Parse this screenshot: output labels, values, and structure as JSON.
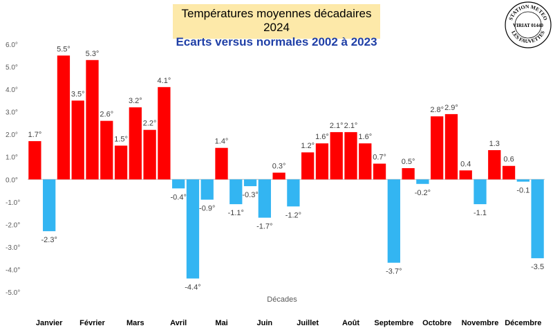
{
  "header": {
    "title_line1": "Températures moyennes décadaires 2024",
    "title_line2": "Ecarts versus normales 2002 à 2023"
  },
  "stamp": {
    "line1": "STATION METEO",
    "line2": "VIRIAT 01440",
    "line3": "LES FAUVETTES"
  },
  "chart_data": {
    "type": "bar",
    "title": "Températures moyennes décadaires 2024 — Ecarts versus normales 2002 à 2023",
    "xlabel": "Décades",
    "ylabel": "",
    "ylim": [
      -5.0,
      6.0
    ],
    "y_ticks": [
      6.0,
      5.0,
      4.0,
      3.0,
      2.0,
      1.0,
      0.0,
      -1.0,
      -2.0,
      -3.0,
      -4.0,
      -5.0
    ],
    "y_tick_labels": [
      "6.0°",
      "5.0°",
      "4.0°",
      "3.0°",
      "2.0°",
      "1.0°",
      "0.0°",
      "-1.0°",
      "-2.0°",
      "-3.0°",
      "-4.0°",
      "-5.0°"
    ],
    "grid": false,
    "positive_color": "#ff0000",
    "negative_color": "#33b5f2",
    "months": [
      "Janvier",
      "Février",
      "Mars",
      "Avril",
      "Mai",
      "Juin",
      "Juillet",
      "Août",
      "Septembre",
      "Octobre",
      "Novembre",
      "Décembre"
    ],
    "values": [
      1.7,
      -2.3,
      5.5,
      3.5,
      5.3,
      2.6,
      1.5,
      3.2,
      2.2,
      4.1,
      -0.4,
      -4.4,
      -0.9,
      1.4,
      -1.1,
      -0.3,
      -1.7,
      0.3,
      -1.2,
      1.2,
      1.6,
      2.1,
      2.1,
      1.6,
      0.7,
      -3.7,
      0.5,
      -0.2,
      2.8,
      2.9,
      0.4,
      -1.1,
      1.3,
      0.6,
      -0.1,
      -3.5
    ],
    "labels": [
      "1.7°",
      "-2.3°",
      "5.5°",
      "3.5°",
      "5.3°",
      "2.6°",
      "1.5°",
      "3.2°",
      "2.2°",
      "4.1°",
      "-0.4°",
      "-4.4°",
      "-0.9°",
      "1.4°",
      "-1.1°",
      "-0.3°",
      "-1.7°",
      "0.3°",
      "-1.2°",
      "1.2°",
      "1.6°",
      "2.1°",
      "2.1°",
      "1.6°",
      "0.7°",
      "-3.7°",
      "0.5°",
      "-0.2°",
      "2.8°",
      "2.9°",
      "0.4",
      "-1.1",
      "1.3",
      "0.6",
      "-0.1",
      "-3.5"
    ]
  }
}
